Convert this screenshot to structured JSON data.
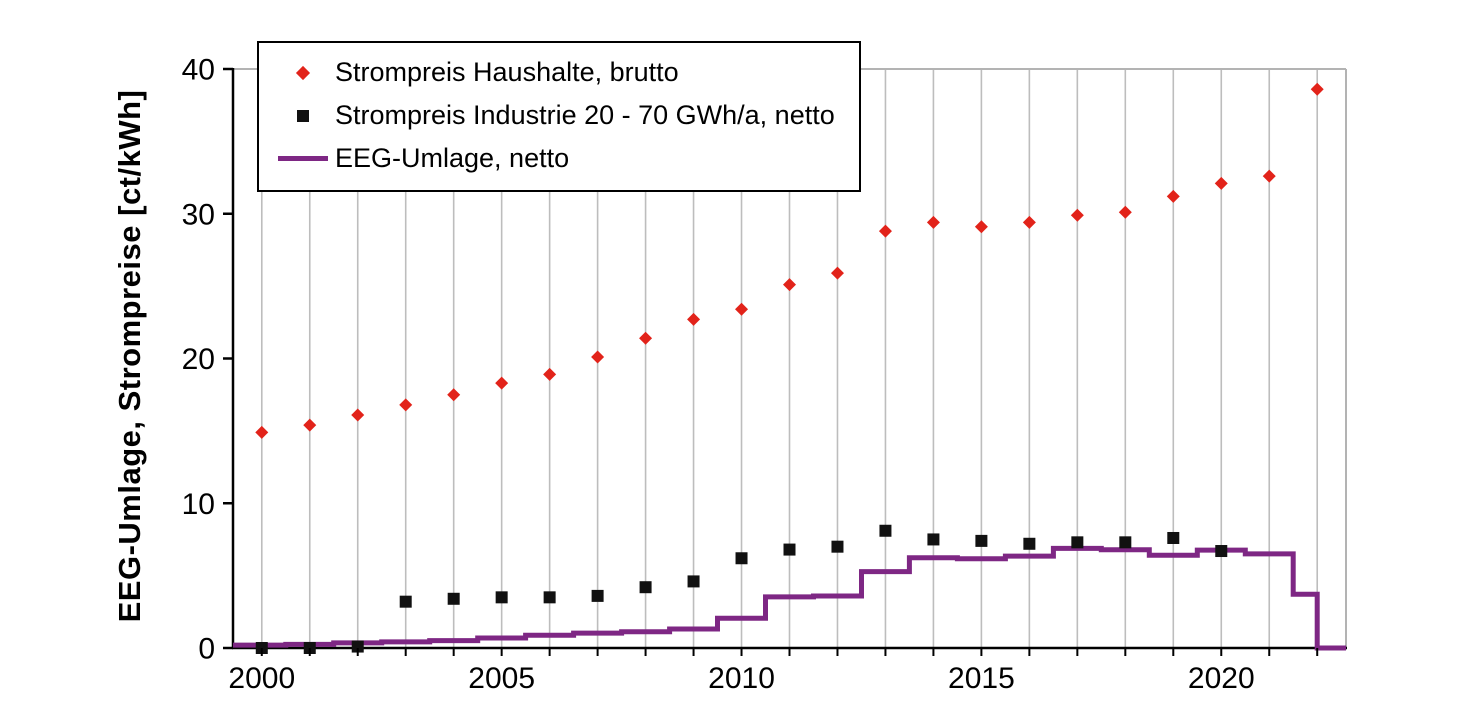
{
  "chart_data": {
    "type": "combo",
    "title": "",
    "ylabel": "EEG-Umlage, Strompreise [ct/kWh]",
    "ylim": [
      0,
      40
    ],
    "yticks": [
      0,
      10,
      20,
      30,
      40
    ],
    "xlim": [
      1999.4,
      2022.6
    ],
    "xgrid_year_start": 2000,
    "xgrid_year_end": 2022,
    "xticks_labeled": [
      2000,
      2005,
      2010,
      2015,
      2020
    ],
    "grid": "vertical-only",
    "legend_position": "top-left-inside",
    "axis_color": "#000000",
    "grid_color": "#bdbdbd",
    "series": [
      {
        "name": "Strompreis Haushalte, brutto",
        "type": "scatter",
        "marker": "diamond",
        "color": "#e2231a",
        "years": [
          2000,
          2001,
          2002,
          2003,
          2004,
          2005,
          2006,
          2007,
          2008,
          2009,
          2010,
          2011,
          2012,
          2013,
          2014,
          2015,
          2016,
          2017,
          2018,
          2019,
          2020,
          2021,
          2022
        ],
        "values": [
          14.9,
          15.4,
          16.1,
          16.8,
          17.5,
          18.3,
          18.9,
          20.1,
          21.4,
          22.7,
          23.4,
          25.1,
          25.9,
          28.8,
          29.4,
          29.1,
          29.4,
          29.9,
          30.1,
          31.2,
          32.1,
          32.6,
          38.6
        ]
      },
      {
        "name": "Strompreis Industrie 20 - 70 GWh/a, netto",
        "type": "scatter",
        "marker": "square",
        "color": "#111111",
        "years": [
          2000,
          2001,
          2002,
          2003,
          2004,
          2005,
          2006,
          2007,
          2008,
          2009,
          2010,
          2011,
          2012,
          2013,
          2014,
          2015,
          2016,
          2017,
          2018,
          2019,
          2020
        ],
        "values": [
          0.0,
          0.0,
          0.1,
          3.2,
          3.4,
          3.5,
          3.5,
          3.6,
          4.2,
          4.6,
          6.2,
          6.8,
          7.0,
          8.1,
          7.5,
          7.4,
          7.2,
          7.3,
          7.3,
          7.6,
          6.7
        ]
      },
      {
        "name": "EEG-Umlage, netto",
        "type": "step-line",
        "color": "#7e2784",
        "steps": [
          {
            "start": 1999.4,
            "value": 0.2
          },
          {
            "start": 2000.5,
            "value": 0.25
          },
          {
            "start": 2001.5,
            "value": 0.35
          },
          {
            "start": 2002.5,
            "value": 0.42
          },
          {
            "start": 2003.5,
            "value": 0.51
          },
          {
            "start": 2004.5,
            "value": 0.69
          },
          {
            "start": 2005.5,
            "value": 0.88
          },
          {
            "start": 2006.5,
            "value": 1.03
          },
          {
            "start": 2007.5,
            "value": 1.12
          },
          {
            "start": 2008.5,
            "value": 1.31
          },
          {
            "start": 2009.5,
            "value": 2.05
          },
          {
            "start": 2010.5,
            "value": 3.53
          },
          {
            "start": 2011.5,
            "value": 3.59
          },
          {
            "start": 2012.5,
            "value": 5.28
          },
          {
            "start": 2013.5,
            "value": 6.24
          },
          {
            "start": 2014.5,
            "value": 6.17
          },
          {
            "start": 2015.5,
            "value": 6.35
          },
          {
            "start": 2016.5,
            "value": 6.88
          },
          {
            "start": 2017.5,
            "value": 6.79
          },
          {
            "start": 2018.5,
            "value": 6.41
          },
          {
            "start": 2019.5,
            "value": 6.76
          },
          {
            "start": 2020.5,
            "value": 6.5
          },
          {
            "start": 2021.5,
            "value": 3.72
          },
          {
            "start": 2022.0,
            "value": 0.0
          }
        ]
      }
    ]
  }
}
